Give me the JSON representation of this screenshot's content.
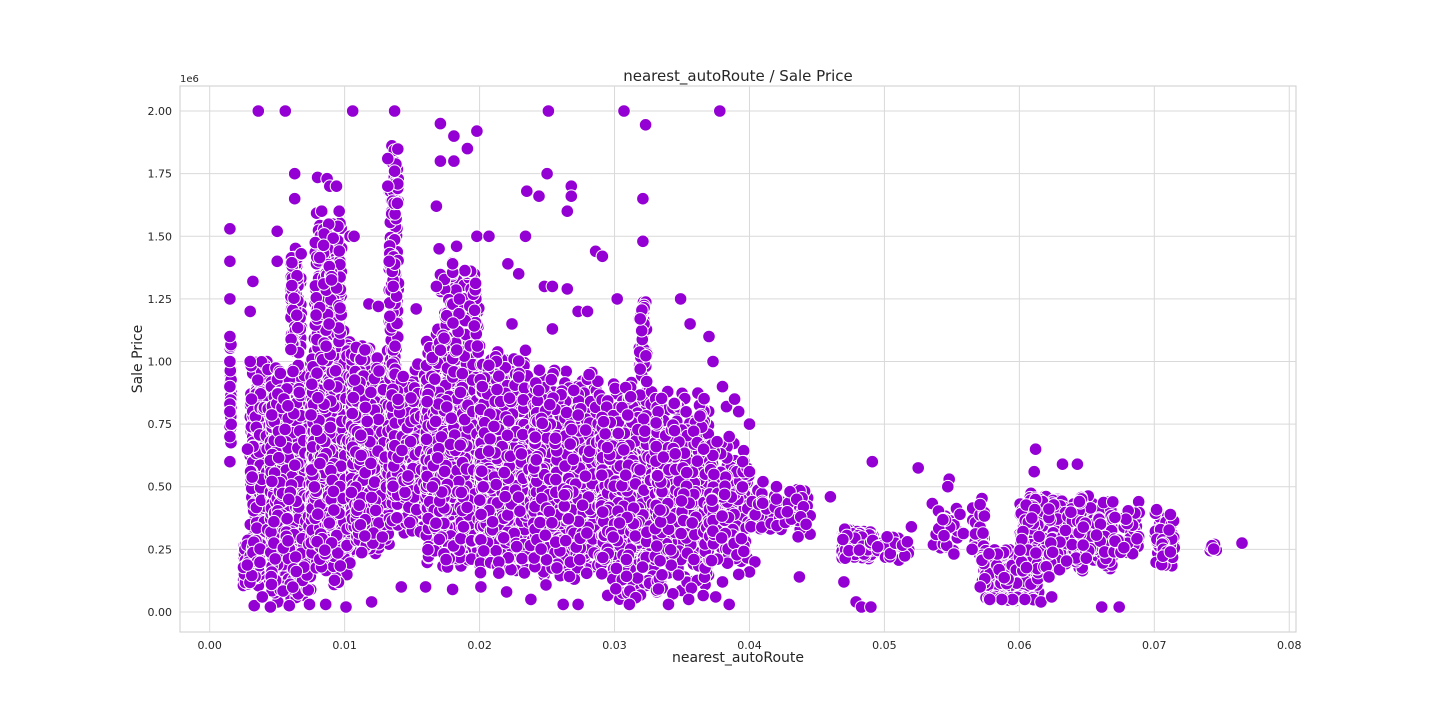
{
  "chart_data": {
    "type": "scatter",
    "title": "nearest_autoRoute / Sale Price",
    "xlabel": "nearest_autoRoute",
    "ylabel": "Sale Price",
    "y_offset_label": "1e6",
    "xlim": [
      -0.0022,
      0.0805
    ],
    "ylim": [
      -80000,
      2100000
    ],
    "x_ticks": [
      0.0,
      0.01,
      0.02,
      0.03,
      0.04,
      0.05,
      0.06,
      0.07,
      0.08
    ],
    "x_tick_labels": [
      "0.00",
      "0.01",
      "0.02",
      "0.03",
      "0.04",
      "0.05",
      "0.06",
      "0.07",
      "0.08"
    ],
    "y_ticks": [
      0,
      250000,
      500000,
      750000,
      1000000,
      1250000,
      1500000,
      1750000,
      2000000
    ],
    "y_tick_labels": [
      "0.00",
      "0.25",
      "0.50",
      "0.75",
      "1.00",
      "1.25",
      "1.50",
      "1.75",
      "2.00"
    ],
    "grid": true,
    "marker_color": "#9400D3",
    "marker_edge_color": "#ffffff",
    "points": [
      [
        0.0036,
        2000000
      ],
      [
        0.0056,
        2000000
      ],
      [
        0.0106,
        2000000
      ],
      [
        0.0137,
        2000000
      ],
      [
        0.0251,
        2000000
      ],
      [
        0.0307,
        2000000
      ],
      [
        0.0378,
        2000000
      ],
      [
        0.0171,
        1950000
      ],
      [
        0.0181,
        1900000
      ],
      [
        0.0198,
        1920000
      ],
      [
        0.0323,
        1945000
      ],
      [
        0.0191,
        1850000
      ],
      [
        0.0171,
        1800000
      ],
      [
        0.0181,
        1800000
      ],
      [
        0.0132,
        1810000
      ],
      [
        0.0137,
        1760000
      ],
      [
        0.0063,
        1750000
      ],
      [
        0.025,
        1750000
      ],
      [
        0.008,
        1735000
      ],
      [
        0.0087,
        1730000
      ],
      [
        0.0089,
        1700000
      ],
      [
        0.0094,
        1700000
      ],
      [
        0.0268,
        1700000
      ],
      [
        0.0132,
        1700000
      ],
      [
        0.0235,
        1680000
      ],
      [
        0.0244,
        1660000
      ],
      [
        0.0268,
        1660000
      ],
      [
        0.0063,
        1650000
      ],
      [
        0.0321,
        1650000
      ],
      [
        0.0083,
        1600000
      ],
      [
        0.0096,
        1600000
      ],
      [
        0.0265,
        1600000
      ],
      [
        0.0168,
        1620000
      ],
      [
        0.0015,
        1530000
      ],
      [
        0.005,
        1520000
      ],
      [
        0.0104,
        1500000
      ],
      [
        0.0107,
        1500000
      ],
      [
        0.0198,
        1500000
      ],
      [
        0.0207,
        1500000
      ],
      [
        0.0234,
        1500000
      ],
      [
        0.0321,
        1480000
      ],
      [
        0.017,
        1450000
      ],
      [
        0.0183,
        1460000
      ],
      [
        0.0286,
        1440000
      ],
      [
        0.0291,
        1420000
      ],
      [
        0.0015,
        1400000
      ],
      [
        0.005,
        1400000
      ],
      [
        0.0133,
        1400000
      ],
      [
        0.018,
        1390000
      ],
      [
        0.0221,
        1390000
      ],
      [
        0.0229,
        1350000
      ],
      [
        0.0136,
        1300000
      ],
      [
        0.0168,
        1300000
      ],
      [
        0.0248,
        1300000
      ],
      [
        0.0254,
        1300000
      ],
      [
        0.0265,
        1290000
      ],
      [
        0.0015,
        1250000
      ],
      [
        0.0302,
        1250000
      ],
      [
        0.0349,
        1250000
      ],
      [
        0.0118,
        1230000
      ],
      [
        0.0125,
        1220000
      ],
      [
        0.0273,
        1200000
      ],
      [
        0.028,
        1200000
      ],
      [
        0.0153,
        1210000
      ],
      [
        0.0319,
        1170000
      ],
      [
        0.0356,
        1150000
      ],
      [
        0.0224,
        1150000
      ],
      [
        0.0254,
        1130000
      ],
      [
        0.037,
        1100000
      ],
      [
        0.0015,
        1100000
      ],
      [
        0.0015,
        1000000
      ],
      [
        0.0015,
        900000
      ],
      [
        0.0015,
        800000
      ],
      [
        0.0015,
        700000
      ],
      [
        0.0015,
        600000
      ],
      [
        0.003,
        1200000
      ],
      [
        0.0032,
        1320000
      ],
      [
        0.003,
        1000000
      ],
      [
        0.0031,
        850000
      ],
      [
        0.0028,
        650000
      ],
      [
        0.0373,
        1000000
      ],
      [
        0.038,
        900000
      ],
      [
        0.0383,
        820000
      ],
      [
        0.0389,
        850000
      ],
      [
        0.0392,
        800000
      ],
      [
        0.04,
        750000
      ],
      [
        0.0385,
        700000
      ],
      [
        0.0376,
        680000
      ],
      [
        0.0366,
        650000
      ],
      [
        0.0395,
        600000
      ],
      [
        0.04,
        560000
      ],
      [
        0.041,
        520000
      ],
      [
        0.042,
        500000
      ],
      [
        0.043,
        480000
      ],
      [
        0.0435,
        450000
      ],
      [
        0.044,
        420000
      ],
      [
        0.0428,
        400000
      ],
      [
        0.0438,
        380000
      ],
      [
        0.0442,
        350000
      ],
      [
        0.0436,
        300000
      ],
      [
        0.0404,
        200000
      ],
      [
        0.04,
        160000
      ],
      [
        0.0392,
        150000
      ],
      [
        0.038,
        120000
      ],
      [
        0.0375,
        60000
      ],
      [
        0.0385,
        30000
      ],
      [
        0.0355,
        50000
      ],
      [
        0.034,
        30000
      ],
      [
        0.0311,
        30000
      ],
      [
        0.0273,
        30000
      ],
      [
        0.0262,
        30000
      ],
      [
        0.0238,
        50000
      ],
      [
        0.022,
        80000
      ],
      [
        0.0201,
        100000
      ],
      [
        0.018,
        90000
      ],
      [
        0.016,
        100000
      ],
      [
        0.0142,
        100000
      ],
      [
        0.012,
        40000
      ],
      [
        0.0101,
        20000
      ],
      [
        0.0086,
        30000
      ],
      [
        0.0074,
        30000
      ],
      [
        0.0059,
        25000
      ],
      [
        0.0045,
        20000
      ],
      [
        0.0033,
        25000
      ],
      [
        0.0039,
        60000
      ],
      [
        0.0437,
        140000
      ],
      [
        0.046,
        460000
      ],
      [
        0.047,
        120000
      ],
      [
        0.0479,
        40000
      ],
      [
        0.0483,
        20000
      ],
      [
        0.049,
        20000
      ],
      [
        0.0491,
        600000
      ],
      [
        0.0525,
        575000
      ],
      [
        0.0548,
        530000
      ],
      [
        0.0547,
        500000
      ],
      [
        0.0556,
        390000
      ],
      [
        0.0565,
        250000
      ],
      [
        0.0571,
        100000
      ],
      [
        0.0612,
        650000
      ],
      [
        0.0611,
        560000
      ],
      [
        0.0632,
        590000
      ],
      [
        0.0643,
        590000
      ],
      [
        0.0661,
        20000
      ],
      [
        0.0674,
        20000
      ],
      [
        0.0765,
        275000
      ],
      [
        0.052,
        340000
      ],
      [
        0.0502,
        300000
      ],
      [
        0.0517,
        280000
      ],
      [
        0.0495,
        260000
      ],
      [
        0.0622,
        140000
      ],
      [
        0.0604,
        50000
      ],
      [
        0.0595,
        50000
      ],
      [
        0.0587,
        50000
      ],
      [
        0.0578,
        50000
      ],
      [
        0.0616,
        40000
      ],
      [
        0.0624,
        60000
      ]
    ],
    "clusters": [
      {
        "x": [
          0.0015,
          0.0016
        ],
        "y": [
          580000,
          1150000
        ],
        "n": 40
      },
      {
        "x": [
          0.0025,
          0.0038
        ],
        "y": [
          100000,
          300000
        ],
        "n": 320
      },
      {
        "x": [
          0.003,
          0.0045
        ],
        "y": [
          300000,
          1050000
        ],
        "n": 260
      },
      {
        "x": [
          0.0045,
          0.0075
        ],
        "y": [
          20000,
          1000000
        ],
        "n": 900
      },
      {
        "x": [
          0.006,
          0.0068
        ],
        "y": [
          900000,
          1500000
        ],
        "n": 90
      },
      {
        "x": [
          0.0075,
          0.0105
        ],
        "y": [
          100000,
          1150000
        ],
        "n": 1100
      },
      {
        "x": [
          0.0078,
          0.0098
        ],
        "y": [
          1100000,
          1600000
        ],
        "n": 120
      },
      {
        "x": [
          0.0105,
          0.0135
        ],
        "y": [
          200000,
          1100000
        ],
        "n": 800
      },
      {
        "x": [
          0.0133,
          0.014
        ],
        "y": [
          900000,
          1980000
        ],
        "n": 120
      },
      {
        "x": [
          0.0135,
          0.0165
        ],
        "y": [
          300000,
          1000000
        ],
        "n": 500
      },
      {
        "x": [
          0.016,
          0.02
        ],
        "y": [
          150000,
          1150000
        ],
        "n": 900
      },
      {
        "x": [
          0.017,
          0.02
        ],
        "y": [
          1000000,
          1450000
        ],
        "n": 80
      },
      {
        "x": [
          0.02,
          0.024
        ],
        "y": [
          120000,
          1050000
        ],
        "n": 800
      },
      {
        "x": [
          0.024,
          0.029
        ],
        "y": [
          100000,
          1000000
        ],
        "n": 750
      },
      {
        "x": [
          0.029,
          0.033
        ],
        "y": [
          40000,
          950000
        ],
        "n": 650
      },
      {
        "x": [
          0.0318,
          0.0324
        ],
        "y": [
          900000,
          1320000
        ],
        "n": 40
      },
      {
        "x": [
          0.033,
          0.037
        ],
        "y": [
          60000,
          900000
        ],
        "n": 480
      },
      {
        "x": [
          0.037,
          0.04
        ],
        "y": [
          150000,
          700000
        ],
        "n": 160
      },
      {
        "x": [
          0.04,
          0.0445
        ],
        "y": [
          300000,
          500000
        ],
        "n": 70
      },
      {
        "x": [
          0.0468,
          0.0492
        ],
        "y": [
          200000,
          340000
        ],
        "n": 160
      },
      {
        "x": [
          0.049,
          0.052
        ],
        "y": [
          200000,
          320000
        ],
        "n": 25
      },
      {
        "x": [
          0.0535,
          0.056
        ],
        "y": [
          200000,
          450000
        ],
        "n": 30
      },
      {
        "x": [
          0.0565,
          0.0575
        ],
        "y": [
          150000,
          460000
        ],
        "n": 25
      },
      {
        "x": [
          0.0572,
          0.0615
        ],
        "y": [
          60000,
          260000
        ],
        "n": 220
      },
      {
        "x": [
          0.0575,
          0.0612
        ],
        "y": [
          45000,
          65000
        ],
        "n": 40
      },
      {
        "x": [
          0.06,
          0.067
        ],
        "y": [
          150000,
          480000
        ],
        "n": 520
      },
      {
        "x": [
          0.067,
          0.069
        ],
        "y": [
          200000,
          450000
        ],
        "n": 40
      },
      {
        "x": [
          0.07,
          0.0715
        ],
        "y": [
          180000,
          430000
        ],
        "n": 70
      },
      {
        "x": [
          0.074,
          0.0746
        ],
        "y": [
          230000,
          290000
        ],
        "n": 8
      }
    ]
  }
}
